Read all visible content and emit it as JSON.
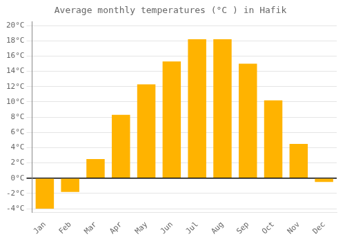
{
  "chart_data": {
    "type": "bar",
    "title": "Average monthly temperatures (°C ) in Hafik",
    "categories": [
      "Jan",
      "Feb",
      "Mar",
      "Apr",
      "May",
      "Jun",
      "Jul",
      "Aug",
      "Sep",
      "Oct",
      "Nov",
      "Dec"
    ],
    "values": [
      -4.0,
      -1.8,
      2.5,
      8.3,
      12.3,
      15.3,
      18.2,
      18.2,
      15.0,
      10.2,
      4.5,
      -0.5
    ],
    "color": "#FFB300",
    "ylim": [
      -4.5,
      20.5
    ],
    "yticks": [
      {
        "value": -4,
        "label": "-4°C"
      },
      {
        "value": -2,
        "label": "-2°C"
      },
      {
        "value": 0,
        "label": "0°C"
      },
      {
        "value": 2,
        "label": "2°C"
      },
      {
        "value": 4,
        "label": "4°C"
      },
      {
        "value": 6,
        "label": "6°C"
      },
      {
        "value": 8,
        "label": "8°C"
      },
      {
        "value": 10,
        "label": "10°C"
      },
      {
        "value": 12,
        "label": "12°C"
      },
      {
        "value": 14,
        "label": "14°C"
      },
      {
        "value": 16,
        "label": "16°C"
      },
      {
        "value": 18,
        "label": "18°C"
      },
      {
        "value": 20,
        "label": "20°C"
      }
    ],
    "grid": true
  }
}
